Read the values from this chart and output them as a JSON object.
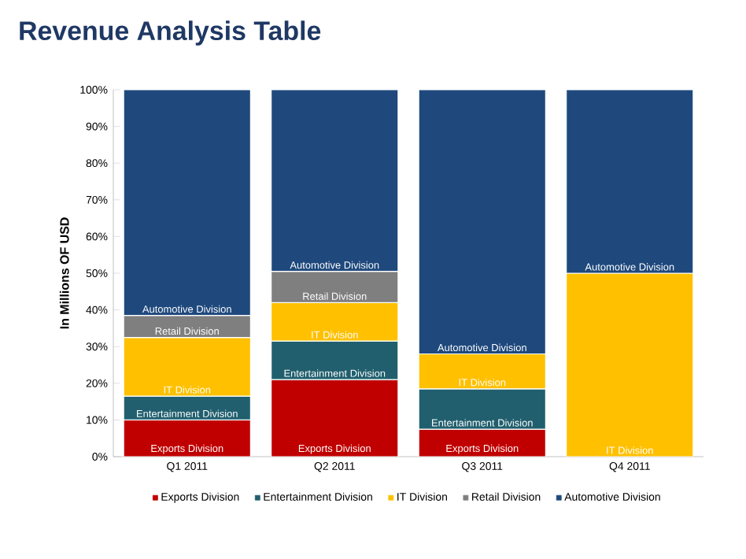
{
  "chart_data": {
    "type": "bar",
    "stacked": true,
    "title": "Revenue Analysis Table",
    "ylabel": "In Millions OF USD",
    "categories": [
      "Q1 2011",
      "Q2 2011",
      "Q3 2011",
      "Q4 2011"
    ],
    "ylim": [
      0,
      100
    ],
    "yticks": [
      {
        "value": 0,
        "label": "0%"
      },
      {
        "value": 10,
        "label": "10%"
      },
      {
        "value": 20,
        "label": "20%"
      },
      {
        "value": 30,
        "label": "30%"
      },
      {
        "value": 40,
        "label": "40%"
      },
      {
        "value": 50,
        "label": "50%"
      },
      {
        "value": 60,
        "label": "60%"
      },
      {
        "value": 70,
        "label": "70%"
      },
      {
        "value": 80,
        "label": "80%"
      },
      {
        "value": 90,
        "label": "90%"
      },
      {
        "value": 100,
        "label": "100%"
      }
    ],
    "legend": "bottom",
    "series": [
      {
        "name": "Exports Division",
        "color": "#c00000",
        "values": [
          10,
          21,
          7.5,
          null
        ]
      },
      {
        "name": "Entertainment Division",
        "color": "#215f6e",
        "values": [
          6.5,
          10.5,
          11,
          null
        ]
      },
      {
        "name": "IT Division",
        "color": "#ffc000",
        "values": [
          16,
          10.5,
          9.5,
          50
        ]
      },
      {
        "name": "Retail Division",
        "color": "#7f7f7f",
        "values": [
          6,
          8.5,
          null,
          null
        ]
      },
      {
        "name": "Automotive Division",
        "color": "#1f497d",
        "values": [
          61.5,
          49.5,
          72,
          50
        ]
      }
    ]
  }
}
